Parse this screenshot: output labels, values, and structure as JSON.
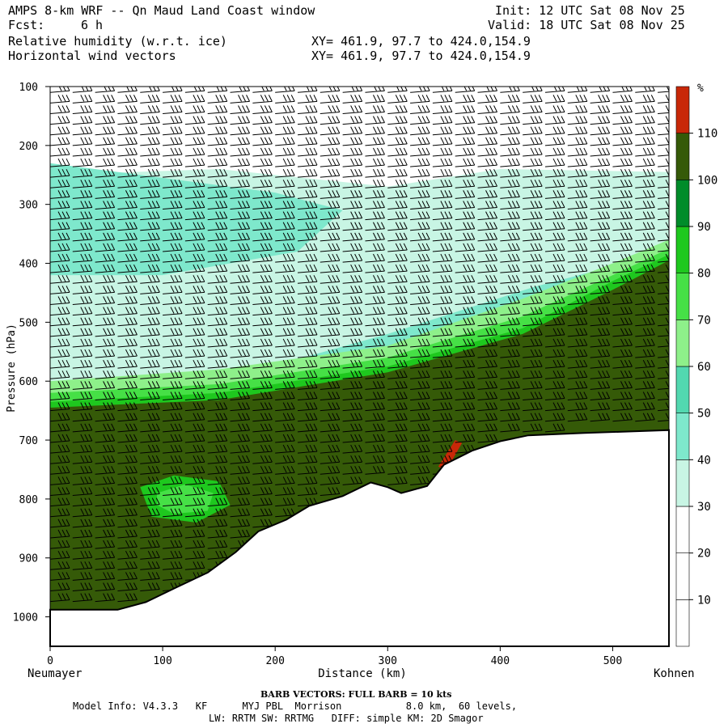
{
  "header": {
    "title": "AMPS 8-km WRF -- Qn Maud Land Coast window",
    "fcst_label": "Fcst:",
    "fcst_value": "6 h",
    "init": "Init: 12 UTC Sat 08 Nov 25",
    "valid": "Valid: 18 UTC Sat 08 Nov 25",
    "field1": "Relative humidity (w.r.t. ice)",
    "field2": "Horizontal wind vectors",
    "xy1": "XY= 461.9, 97.7 to 424.0,154.9",
    "xy2": "XY= 461.9, 97.7 to 424.0,154.9"
  },
  "chart_data": {
    "type": "heatmap",
    "xlabel": "Distance (km)",
    "ylabel": "Pressure (hPa)",
    "xlim": [
      0,
      550
    ],
    "ylim": [
      1050,
      100
    ],
    "x_ticks": [
      0,
      100,
      200,
      300,
      400,
      500
    ],
    "y_ticks": [
      100,
      200,
      300,
      400,
      500,
      600,
      700,
      800,
      900,
      1000
    ],
    "left_endpoint": "Neumayer",
    "right_endpoint": "Kohnen",
    "colorbar": {
      "unit": "%",
      "levels": [
        10,
        20,
        30,
        40,
        50,
        60,
        70,
        80,
        90,
        100,
        110
      ],
      "colors": [
        "#ffffff",
        "#ffffff",
        "#ffffff",
        "#c8f5e4",
        "#7ee8cc",
        "#52d8b0",
        "#8ef08a",
        "#46e046",
        "#1ec81e",
        "#008c2a",
        "#355a08",
        "#c82808"
      ]
    },
    "terrain_surface_hpa": [
      [
        0,
        988
      ],
      [
        60,
        988
      ],
      [
        85,
        975
      ],
      [
        110,
        952
      ],
      [
        140,
        925
      ],
      [
        165,
        890
      ],
      [
        185,
        855
      ],
      [
        210,
        835
      ],
      [
        230,
        812
      ],
      [
        260,
        795
      ],
      [
        285,
        772
      ],
      [
        300,
        780
      ],
      [
        312,
        790
      ],
      [
        335,
        778
      ],
      [
        350,
        742
      ],
      [
        375,
        718
      ],
      [
        400,
        702
      ],
      [
        425,
        692
      ],
      [
        475,
        688
      ],
      [
        550,
        683
      ]
    ],
    "rh_ice_regions": [
      {
        "x": [
          0,
          550
        ],
        "p": [
          100,
          240
        ],
        "rh": 20
      },
      {
        "x": [
          0,
          300
        ],
        "p": [
          240,
          600
        ],
        "rh": 40
      },
      {
        "x": [
          300,
          550
        ],
        "p": [
          280,
          520
        ],
        "rh": 35
      },
      {
        "x": [
          0,
          550
        ],
        "p": [
          560,
          640
        ],
        "rh": 65,
        "note": "transition layer sloping upward to the east"
      },
      {
        "x": [
          0,
          550
        ],
        "p": [
          640,
          1000
        ],
        "rh": 105
      },
      {
        "x": [
          70,
          150
        ],
        "p": [
          770,
          850
        ],
        "rh": 75
      },
      {
        "x": [
          345,
          360
        ],
        "p": [
          700,
          740
        ],
        "rh": 112
      }
    ],
    "wind_barbs": "horizontal wind barbs on a regular grid, full barb = 10 kts"
  },
  "footer": {
    "barb_note": "BARB VECTORS: FULL BARB = 10 kts",
    "model_info": "Model Info: V4.3.3   KF      MYJ PBL  Morrison           8.0 km,  60 levels,",
    "model_info2": "LW: RRTM SW: RRTMG   DIFF: simple KM: 2D Smagor"
  }
}
